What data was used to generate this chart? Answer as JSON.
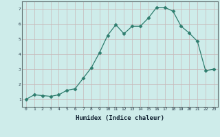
{
  "x": [
    0,
    1,
    2,
    3,
    4,
    5,
    6,
    7,
    8,
    9,
    10,
    11,
    12,
    13,
    14,
    15,
    16,
    17,
    18,
    19,
    20,
    21,
    22,
    23
  ],
  "y": [
    1.0,
    1.3,
    1.25,
    1.2,
    1.3,
    1.6,
    1.7,
    2.4,
    3.1,
    4.1,
    5.25,
    5.95,
    5.35,
    5.85,
    5.85,
    6.4,
    7.1,
    7.1,
    6.85,
    5.85,
    5.4,
    4.85,
    2.9,
    3.0
  ],
  "line_color": "#2e7d6e",
  "marker": "D",
  "marker_size": 2.5,
  "xlabel": "Humidex (Indice chaleur)",
  "xlim": [
    -0.5,
    23.5
  ],
  "ylim": [
    0.5,
    7.5
  ],
  "yticks": [
    1,
    2,
    3,
    4,
    5,
    6,
    7
  ],
  "xticks": [
    0,
    1,
    2,
    3,
    4,
    5,
    6,
    7,
    8,
    9,
    10,
    11,
    12,
    13,
    14,
    15,
    16,
    17,
    18,
    19,
    20,
    21,
    22,
    23
  ],
  "bg_color": "#ceecea",
  "grid_color_major": "#c8b8b8",
  "grid_color_minor": "#d8e8e0",
  "spine_color": "#607070",
  "tick_color": "#203040",
  "xlabel_color": "#102030"
}
